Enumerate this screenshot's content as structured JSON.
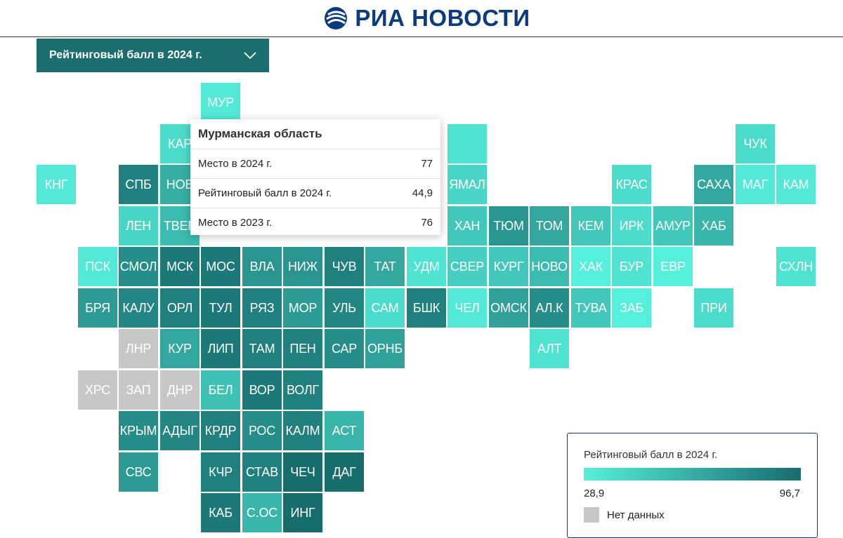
{
  "header": {
    "brand_name": "РИА НОВОСТИ",
    "brand_color": "#0c3a7e"
  },
  "dropdown": {
    "label": "Рейтинговый балл в 2024 г.",
    "icon": "chevron-down-icon",
    "background": "#1c6e6e"
  },
  "scale": {
    "min_color": "#55f0dc",
    "max_color": "#176c6c",
    "no_data_color": "#c7c7c7"
  },
  "tooltip": {
    "title": "Мурманская область",
    "rows": [
      {
        "label": "Место в 2024 г.",
        "value": "77"
      },
      {
        "label": "Рейтинговый балл в 2024 г.",
        "value": "44,9"
      },
      {
        "label": "Место в 2023 г.",
        "value": "76"
      }
    ]
  },
  "legend": {
    "title": "Рейтинговый балл в 2024 г.",
    "min_label": "28,9",
    "max_label": "96,7",
    "no_data_label": "Нет данных"
  },
  "regions": [
    {
      "code": "МУР",
      "col": 4,
      "row": 0,
      "shade": 0.05
    },
    {
      "code": "КАР",
      "col": 3,
      "row": 1,
      "shade": 0.15
    },
    {
      "code": "",
      "col": 10,
      "row": 1,
      "shade": 0.1
    },
    {
      "code": "ЧУК",
      "col": 17,
      "row": 1,
      "shade": 0.15
    },
    {
      "code": "КНГ",
      "col": 0,
      "row": 2,
      "shade": 0.05
    },
    {
      "code": "СПБ",
      "col": 2,
      "row": 2,
      "shade": 0.85
    },
    {
      "code": "НОВ",
      "col": 3,
      "row": 2,
      "shade": 0.5
    },
    {
      "code": "ЯМАЛ",
      "col": 10,
      "row": 2,
      "shade": 0.2
    },
    {
      "code": "КРАС",
      "col": 14,
      "row": 2,
      "shade": 0.15
    },
    {
      "code": "САХА",
      "col": 16,
      "row": 2,
      "shade": 0.55
    },
    {
      "code": "МАГ",
      "col": 17,
      "row": 2,
      "shade": 0.05
    },
    {
      "code": "КАМ",
      "col": 18,
      "row": 2,
      "shade": 0.05
    },
    {
      "code": "ЛЕН",
      "col": 2,
      "row": 3,
      "shade": 0.2
    },
    {
      "code": "ТВЕР",
      "col": 3,
      "row": 3,
      "shade": 0.4
    },
    {
      "code": "ХАН",
      "col": 10,
      "row": 3,
      "shade": 0.3
    },
    {
      "code": "ТЮМ",
      "col": 11,
      "row": 3,
      "shade": 0.7
    },
    {
      "code": "ТОМ",
      "col": 12,
      "row": 3,
      "shade": 0.55
    },
    {
      "code": "КЕМ",
      "col": 13,
      "row": 3,
      "shade": 0.3
    },
    {
      "code": "ИРК",
      "col": 14,
      "row": 3,
      "shade": 0.15
    },
    {
      "code": "АМУР",
      "col": 15,
      "row": 3,
      "shade": 0.3
    },
    {
      "code": "ХАБ",
      "col": 16,
      "row": 3,
      "shade": 0.45
    },
    {
      "code": "ПСК",
      "col": 1,
      "row": 4,
      "shade": 0.05
    },
    {
      "code": "СМОЛ",
      "col": 2,
      "row": 4,
      "shade": 0.75
    },
    {
      "code": "МСК",
      "col": 3,
      "row": 4,
      "shade": 0.9
    },
    {
      "code": "МОС",
      "col": 4,
      "row": 4,
      "shade": 0.9
    },
    {
      "code": "ВЛА",
      "col": 5,
      "row": 4,
      "shade": 0.7
    },
    {
      "code": "НИЖ",
      "col": 6,
      "row": 4,
      "shade": 0.7
    },
    {
      "code": "ЧУВ",
      "col": 7,
      "row": 4,
      "shade": 0.85
    },
    {
      "code": "ТАТ",
      "col": 8,
      "row": 4,
      "shade": 0.55
    },
    {
      "code": "УДМ",
      "col": 9,
      "row": 4,
      "shade": 0.1
    },
    {
      "code": "СВЕР",
      "col": 10,
      "row": 4,
      "shade": 0.25
    },
    {
      "code": "КУРГ",
      "col": 11,
      "row": 4,
      "shade": 0.3
    },
    {
      "code": "НОВО",
      "col": 12,
      "row": 4,
      "shade": 0.4
    },
    {
      "code": "ХАК",
      "col": 13,
      "row": 4,
      "shade": 0.0
    },
    {
      "code": "БУР",
      "col": 14,
      "row": 4,
      "shade": 0.1
    },
    {
      "code": "ЕВР",
      "col": 15,
      "row": 4,
      "shade": 0.0
    },
    {
      "code": "СХЛН",
      "col": 18,
      "row": 4,
      "shade": 0.1
    },
    {
      "code": "БРЯ",
      "col": 1,
      "row": 5,
      "shade": 0.65
    },
    {
      "code": "КАЛУ",
      "col": 2,
      "row": 5,
      "shade": 0.8
    },
    {
      "code": "ОРЛ",
      "col": 3,
      "row": 5,
      "shade": 0.85
    },
    {
      "code": "ТУЛ",
      "col": 4,
      "row": 5,
      "shade": 0.9
    },
    {
      "code": "РЯЗ",
      "col": 5,
      "row": 5,
      "shade": 0.85
    },
    {
      "code": "МОР",
      "col": 6,
      "row": 5,
      "shade": 0.65
    },
    {
      "code": "УЛЬ",
      "col": 7,
      "row": 5,
      "shade": 0.8
    },
    {
      "code": "САМ",
      "col": 8,
      "row": 5,
      "shade": 0.15
    },
    {
      "code": "БШК",
      "col": 9,
      "row": 5,
      "shade": 0.85
    },
    {
      "code": "ЧЕЛ",
      "col": 10,
      "row": 5,
      "shade": 0.05
    },
    {
      "code": "ОМСК",
      "col": 11,
      "row": 5,
      "shade": 0.6
    },
    {
      "code": "АЛ.К",
      "col": 12,
      "row": 5,
      "shade": 0.75
    },
    {
      "code": "ТУВА",
      "col": 13,
      "row": 5,
      "shade": 0.3
    },
    {
      "code": "ЗАБ",
      "col": 14,
      "row": 5,
      "shade": 0.0
    },
    {
      "code": "ПРИ",
      "col": 16,
      "row": 5,
      "shade": 0.15
    },
    {
      "code": "ЛНР",
      "col": 2,
      "row": 6,
      "shade": null
    },
    {
      "code": "КУР",
      "col": 3,
      "row": 6,
      "shade": 0.55
    },
    {
      "code": "ЛИП",
      "col": 4,
      "row": 6,
      "shade": 0.9
    },
    {
      "code": "ТАМ",
      "col": 5,
      "row": 6,
      "shade": 0.85
    },
    {
      "code": "ПЕН",
      "col": 6,
      "row": 6,
      "shade": 0.85
    },
    {
      "code": "САР",
      "col": 7,
      "row": 6,
      "shade": 0.75
    },
    {
      "code": "ОРНБ",
      "col": 8,
      "row": 6,
      "shade": 0.6
    },
    {
      "code": "АЛТ",
      "col": 12,
      "row": 6,
      "shade": 0.1
    },
    {
      "code": "ХРС",
      "col": 1,
      "row": 7,
      "shade": null
    },
    {
      "code": "ЗАП",
      "col": 2,
      "row": 7,
      "shade": null
    },
    {
      "code": "ДНР",
      "col": 3,
      "row": 7,
      "shade": null
    },
    {
      "code": "БЕЛ",
      "col": 4,
      "row": 7,
      "shade": 0.35
    },
    {
      "code": "ВОР",
      "col": 5,
      "row": 7,
      "shade": 0.9
    },
    {
      "code": "ВОЛГ",
      "col": 6,
      "row": 7,
      "shade": 0.85
    },
    {
      "code": "КРЫМ",
      "col": 2,
      "row": 8,
      "shade": 0.75
    },
    {
      "code": "АДЫГ",
      "col": 3,
      "row": 8,
      "shade": 0.8
    },
    {
      "code": "КРДР",
      "col": 4,
      "row": 8,
      "shade": 0.85
    },
    {
      "code": "РОС",
      "col": 5,
      "row": 8,
      "shade": 0.75
    },
    {
      "code": "КАЛМ",
      "col": 6,
      "row": 8,
      "shade": 0.85
    },
    {
      "code": "АСТ",
      "col": 7,
      "row": 8,
      "shade": 0.45
    },
    {
      "code": "СВС",
      "col": 2,
      "row": 9,
      "shade": 0.65
    },
    {
      "code": "КЧР",
      "col": 4,
      "row": 9,
      "shade": 0.85
    },
    {
      "code": "СТАВ",
      "col": 5,
      "row": 9,
      "shade": 0.85
    },
    {
      "code": "ЧЕЧ",
      "col": 6,
      "row": 9,
      "shade": 1.0
    },
    {
      "code": "ДАГ",
      "col": 7,
      "row": 9,
      "shade": 1.0
    },
    {
      "code": "КАБ",
      "col": 4,
      "row": 10,
      "shade": 0.9
    },
    {
      "code": "С.ОС",
      "col": 5,
      "row": 10,
      "shade": 0.45
    },
    {
      "code": "ИНГ",
      "col": 6,
      "row": 10,
      "shade": 1.0
    }
  ]
}
